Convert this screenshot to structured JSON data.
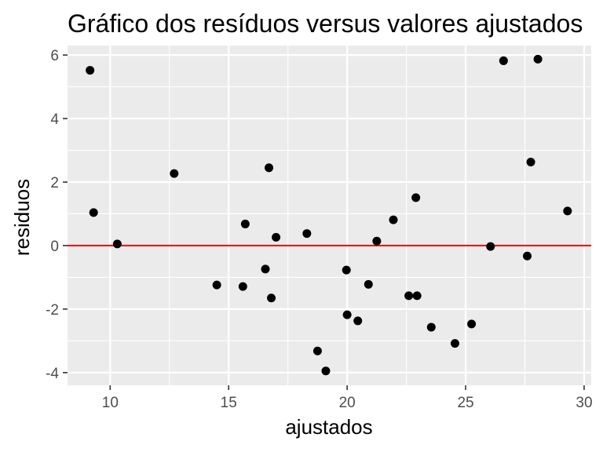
{
  "chart_data": {
    "type": "scatter",
    "title": "Gráfico dos resíduos versus valores ajustados",
    "xlabel": "ajustados",
    "ylabel": "residuos",
    "xlim": [
      8.2,
      30.3
    ],
    "ylim": [
      -4.4,
      6.3
    ],
    "x_ticks": [
      10,
      15,
      20,
      25,
      30
    ],
    "y_ticks": [
      -4,
      -2,
      0,
      2,
      4,
      6
    ],
    "x_tick_labels": [
      "10",
      "15",
      "20",
      "25",
      "30"
    ],
    "y_tick_labels": [
      "-4",
      "-2",
      "0",
      "2",
      "4",
      "6"
    ],
    "grid": true,
    "reference_line": {
      "y": 0,
      "color": "#e41a1c"
    },
    "point_color": "#000000",
    "panel_background": "#ebebeb",
    "grid_color": "#ffffff",
    "points": [
      {
        "x": 9.15,
        "y": 5.52
      },
      {
        "x": 9.3,
        "y": 1.04
      },
      {
        "x": 10.3,
        "y": 0.05
      },
      {
        "x": 12.7,
        "y": 2.27
      },
      {
        "x": 14.5,
        "y": -1.24
      },
      {
        "x": 15.6,
        "y": -1.29
      },
      {
        "x": 15.7,
        "y": 0.68
      },
      {
        "x": 16.55,
        "y": -0.74
      },
      {
        "x": 16.7,
        "y": 2.45
      },
      {
        "x": 16.8,
        "y": -1.65
      },
      {
        "x": 17.0,
        "y": 0.26
      },
      {
        "x": 18.3,
        "y": 0.38
      },
      {
        "x": 18.75,
        "y": -3.32
      },
      {
        "x": 19.1,
        "y": -3.95
      },
      {
        "x": 19.97,
        "y": -0.77
      },
      {
        "x": 20.0,
        "y": -2.18
      },
      {
        "x": 20.45,
        "y": -2.37
      },
      {
        "x": 20.9,
        "y": -1.22
      },
      {
        "x": 21.25,
        "y": 0.14
      },
      {
        "x": 21.95,
        "y": 0.81
      },
      {
        "x": 22.6,
        "y": -1.58
      },
      {
        "x": 22.9,
        "y": 1.51
      },
      {
        "x": 22.95,
        "y": -1.58
      },
      {
        "x": 23.55,
        "y": -2.57
      },
      {
        "x": 24.55,
        "y": -3.08
      },
      {
        "x": 25.25,
        "y": -2.47
      },
      {
        "x": 26.05,
        "y": -0.03
      },
      {
        "x": 26.6,
        "y": 5.82
      },
      {
        "x": 27.6,
        "y": -0.33
      },
      {
        "x": 27.75,
        "y": 2.63
      },
      {
        "x": 28.05,
        "y": 5.87
      },
      {
        "x": 29.3,
        "y": 1.09
      }
    ]
  }
}
